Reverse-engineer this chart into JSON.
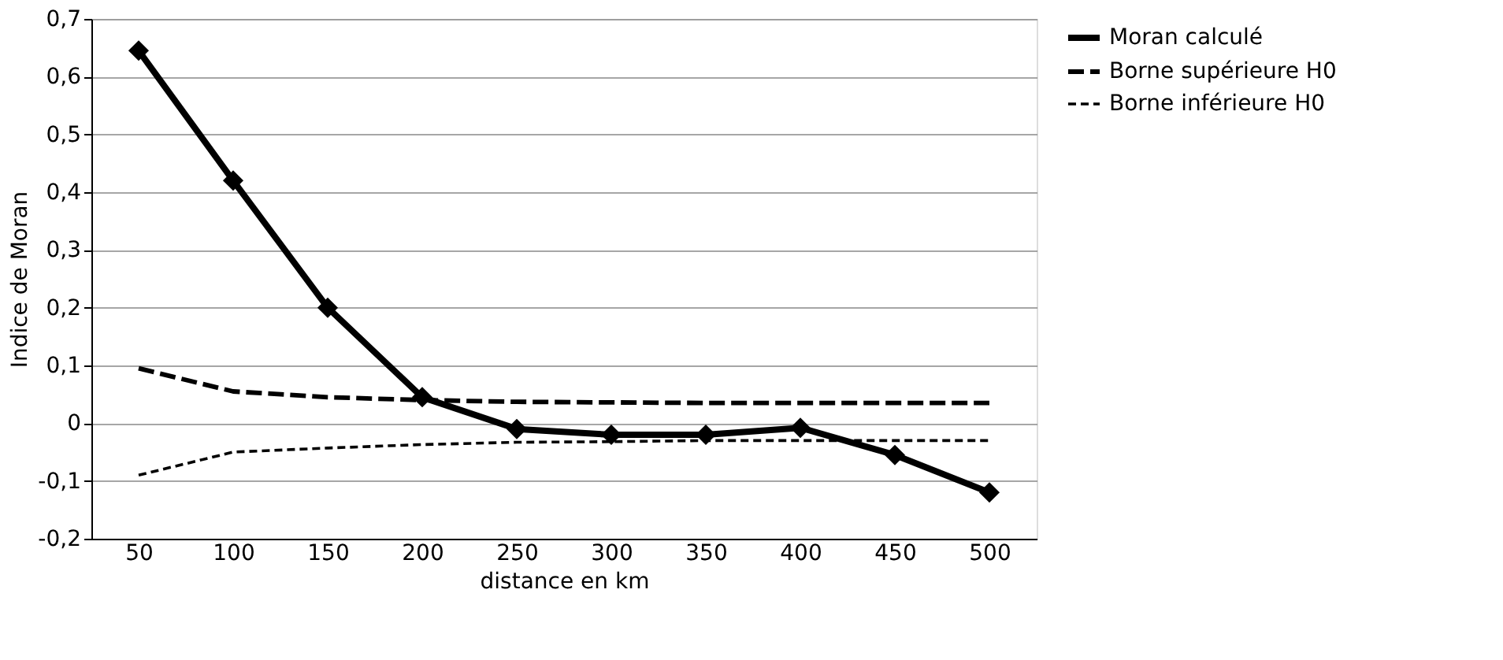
{
  "chart_data": {
    "type": "line",
    "xlabel": "distance en km",
    "ylabel": "Indice de Moran",
    "categories": [
      "50",
      "100",
      "150",
      "200",
      "250",
      "300",
      "350",
      "400",
      "450",
      "500"
    ],
    "series": [
      {
        "name": "Moran calculé",
        "color": "#000000",
        "marker": "diamond",
        "line_style": "solid",
        "values": [
          0.645,
          0.42,
          0.2,
          0.045,
          -0.01,
          -0.02,
          -0.02,
          -0.008,
          -0.055,
          -0.12
        ]
      },
      {
        "name": "Borne supérieure H0",
        "color": "#000000",
        "marker": "none",
        "line_style": "dashed",
        "values": [
          0.095,
          0.055,
          0.045,
          0.04,
          0.037,
          0.036,
          0.035,
          0.035,
          0.035,
          0.035
        ]
      },
      {
        "name": "Borne inférieure H0",
        "color": "#000000",
        "marker": "none",
        "line_style": "dashed",
        "values": [
          -0.09,
          -0.05,
          -0.043,
          -0.037,
          -0.033,
          -0.032,
          -0.03,
          -0.03,
          -0.03,
          -0.03
        ]
      }
    ],
    "ylim": [
      -0.2,
      0.7
    ],
    "yticks": [
      {
        "value": -0.2,
        "label": "-0,2"
      },
      {
        "value": -0.1,
        "label": "-0,1"
      },
      0,
      {
        "value": 0.1,
        "label": "0,1"
      },
      {
        "value": 0.2,
        "label": "0,2"
      },
      {
        "value": 0.3,
        "label": "0,3"
      },
      {
        "value": 0.4,
        "label": "0,4"
      },
      {
        "value": 0.5,
        "label": "0,5"
      },
      {
        "value": 0.6,
        "label": "0,6"
      },
      {
        "value": 0.7,
        "label": "0,7"
      }
    ],
    "grid": "y",
    "legend": "right"
  }
}
